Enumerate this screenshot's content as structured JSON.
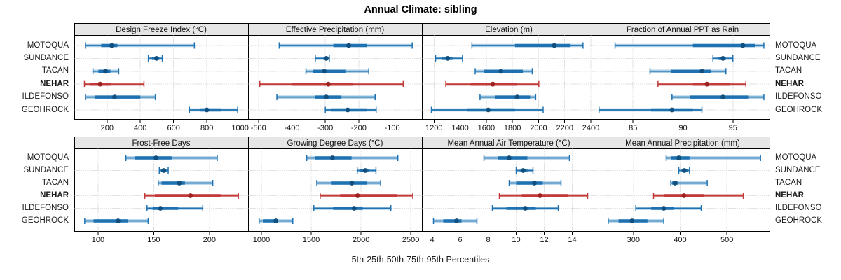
{
  "title": "Annual Climate: sibling",
  "caption": "5th-25th-50th-75th-95th Percentiles",
  "colors": {
    "blue_line": "#1F72B2",
    "blue_light": "#A9CDE5",
    "blue_dot": "#11507E",
    "red_line": "#C23A3A",
    "red_light": "#E2A6A3",
    "red_dot": "#9E2121",
    "strip_bg": "#E6E6E6",
    "panel_bg": "#FFFFFF",
    "border": "#000000",
    "grid": "#C4C4C4",
    "text": "#1A1A1A"
  },
  "chart_data": {
    "type": "dotplot-percentile-intervals",
    "percentile_labels": [
      "5th",
      "25th",
      "50th",
      "75th",
      "95th"
    ],
    "rows": [
      "MOTOQUA",
      "SUNDANCE",
      "TACAN",
      "NEHAR",
      "ILDEFONSO",
      "GEOHROCK"
    ],
    "highlighted_row": "NEHAR",
    "legend_position": "none",
    "grid": "dotted",
    "panels": [
      {
        "title": "Design Freeze Index (°C)",
        "ticks": [
          200,
          400,
          600,
          800,
          1000
        ],
        "domain": [
          5,
          1050
        ],
        "values": [
          [
            70,
            165,
            228,
            262,
            725
          ],
          [
            448,
            470,
            497,
            515,
            532
          ],
          [
            115,
            148,
            190,
            220,
            270
          ],
          [
            64,
            100,
            158,
            225,
            422
          ],
          [
            70,
            125,
            245,
            400,
            490
          ],
          [
            695,
            760,
            800,
            885,
            985
          ]
        ]
      },
      {
        "title": "Effective Precipitation (mm)",
        "ticks": [
          -500,
          -400,
          -300,
          -200,
          -100
        ],
        "domain": [
          -530,
          -10
        ],
        "values": [
          [
            -438,
            -276,
            -230,
            -175,
            -40
          ],
          [
            -330,
            -306,
            -297,
            -291,
            -288
          ],
          [
            -358,
            -338,
            -303,
            -240,
            -170
          ],
          [
            -496,
            -399,
            -291,
            -217,
            -67
          ],
          [
            -445,
            -330,
            -297,
            -252,
            -151
          ],
          [
            -300,
            -282,
            -233,
            -177,
            -148
          ]
        ]
      },
      {
        "title": "Elevation (m)",
        "ticks": [
          1200,
          1400,
          1600,
          1800,
          2000,
          2200,
          2400
        ],
        "domain": [
          1110,
          2440
        ],
        "values": [
          [
            1490,
            1820,
            2120,
            2245,
            2340
          ],
          [
            1212,
            1258,
            1305,
            1342,
            1418
          ],
          [
            1515,
            1580,
            1712,
            1880,
            1952
          ],
          [
            1290,
            1480,
            1650,
            1835,
            2002
          ],
          [
            1552,
            1668,
            1836,
            1935,
            1978
          ],
          [
            1180,
            1455,
            1615,
            1820,
            2035
          ]
        ]
      },
      {
        "title": "Fraction of Annual PPT as Rain",
        "ticks": [
          85,
          90,
          95
        ],
        "domain": [
          81.3,
          98.7
        ],
        "values": [
          [
            83.2,
            91.0,
            96.0,
            97.2,
            98.1
          ],
          [
            93.0,
            93.5,
            94.0,
            94.3,
            95.0
          ],
          [
            86.7,
            88.8,
            91.9,
            92.8,
            94.3
          ],
          [
            87.5,
            91.0,
            92.4,
            94.7,
            96.3
          ],
          [
            88.9,
            90.7,
            94.0,
            96.6,
            98.1
          ],
          [
            81.6,
            86.8,
            88.9,
            91.0,
            91.9
          ]
        ]
      },
      {
        "title": "Frost-Free Days",
        "ticks": [
          100,
          150,
          200
        ],
        "domain": [
          79,
          235
        ],
        "values": [
          [
            125,
            133,
            152,
            166,
            207
          ],
          [
            155,
            156.5,
            159,
            161.5,
            163
          ],
          [
            154,
            157,
            173,
            178,
            203
          ],
          [
            142,
            151,
            183,
            210,
            226
          ],
          [
            144,
            149,
            156,
            172,
            194
          ],
          [
            88,
            96,
            118,
            127,
            145
          ]
        ]
      },
      {
        "title": "Growing Degree Days (°C)",
        "ticks": [
          1000,
          1500,
          2000,
          2500
        ],
        "domain": [
          870,
          2615
        ],
        "values": [
          [
            1455,
            1540,
            1714,
            1905,
            2370
          ],
          [
            1962,
            1990,
            2042,
            2085,
            2150
          ],
          [
            1556,
            1705,
            1908,
            2060,
            2197
          ],
          [
            1590,
            1790,
            1966,
            2360,
            2520
          ],
          [
            1526,
            1720,
            1931,
            2018,
            2300
          ],
          [
            977,
            1015,
            1145,
            1163,
            1315
          ]
        ]
      },
      {
        "title": "Mean Annual Air Temperature (°C)",
        "ticks": [
          4,
          6,
          8,
          10,
          12,
          14
        ],
        "domain": [
          3.3,
          15.7
        ],
        "values": [
          [
            7.7,
            8.7,
            9.5,
            10.8,
            13.8
          ],
          [
            10.0,
            10.3,
            10.5,
            10.8,
            11.2
          ],
          [
            9.5,
            10.0,
            11.3,
            11.9,
            13.2
          ],
          [
            8.8,
            10.4,
            11.7,
            13.7,
            15.1
          ],
          [
            8.3,
            9.3,
            10.65,
            11.4,
            13.0
          ],
          [
            4.1,
            4.8,
            5.75,
            6.1,
            7.2
          ]
        ]
      },
      {
        "title": "Mean Annual Precipitation (mm)",
        "ticks": [
          300,
          400,
          500
        ],
        "domain": [
          220,
          592
        ],
        "values": [
          [
            370,
            381,
            397,
            420,
            572
          ],
          [
            397,
            403,
            409,
            416,
            420
          ],
          [
            380,
            383,
            389,
            395,
            458
          ],
          [
            343,
            366,
            408,
            451,
            535
          ],
          [
            305,
            338,
            365,
            386,
            445
          ],
          [
            246,
            268,
            297,
            330,
            365
          ]
        ]
      }
    ]
  }
}
